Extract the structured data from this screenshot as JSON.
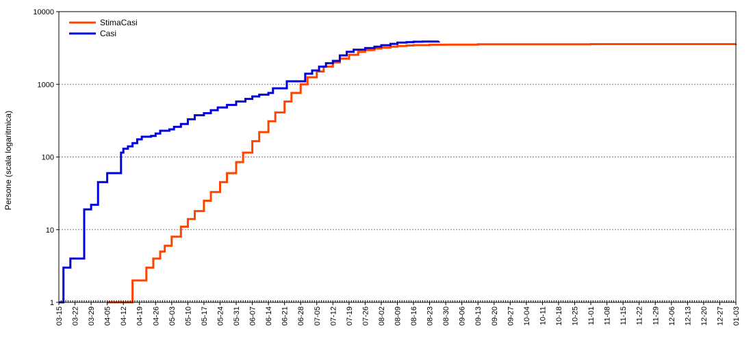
{
  "chart_data": {
    "type": "line",
    "title": "",
    "xlabel": "",
    "ylabel": "Persone (scala logaritmica)",
    "y_scale": "log",
    "ylim": [
      1,
      10000
    ],
    "y_ticks": [
      "1",
      "10",
      "100",
      "1000",
      "10000"
    ],
    "grid": "horizontal dotted",
    "legend_position": "top-left",
    "x_start": "03-15",
    "x_end": "01-03",
    "x_tick_labels": [
      "03-15",
      "03-22",
      "03-29",
      "04-05",
      "04-12",
      "04-19",
      "04-26",
      "05-03",
      "05-10",
      "05-17",
      "05-24",
      "05-31",
      "06-07",
      "06-14",
      "06-21",
      "06-28",
      "07-05",
      "07-12",
      "07-19",
      "07-26",
      "08-02",
      "08-09",
      "08-16",
      "08-23",
      "08-30",
      "09-06",
      "09-13",
      "09-20",
      "09-27",
      "10-04",
      "10-11",
      "10-18",
      "10-25",
      "11-01",
      "11-08",
      "11-15",
      "11-22",
      "11-29",
      "12-06",
      "12-13",
      "12-20",
      "12-27",
      "01-03"
    ],
    "series": [
      {
        "name": "StimaCasi",
        "color": "#ff4400",
        "points": [
          [
            "04-05",
            1
          ],
          [
            "04-15",
            1
          ],
          [
            "04-16",
            2
          ],
          [
            "04-21",
            2
          ],
          [
            "04-22",
            3
          ],
          [
            "04-24",
            3
          ],
          [
            "04-25",
            4
          ],
          [
            "04-27",
            4
          ],
          [
            "04-28",
            5
          ],
          [
            "04-30",
            6
          ],
          [
            "05-03",
            8
          ],
          [
            "05-07",
            11
          ],
          [
            "05-10",
            14
          ],
          [
            "05-13",
            18
          ],
          [
            "05-17",
            25
          ],
          [
            "05-20",
            33
          ],
          [
            "05-24",
            45
          ],
          [
            "05-27",
            60
          ],
          [
            "05-31",
            85
          ],
          [
            "06-03",
            115
          ],
          [
            "06-07",
            165
          ],
          [
            "06-10",
            220
          ],
          [
            "06-14",
            310
          ],
          [
            "06-17",
            410
          ],
          [
            "06-21",
            580
          ],
          [
            "06-24",
            760
          ],
          [
            "06-28",
            1000
          ],
          [
            "07-01",
            1250
          ],
          [
            "07-05",
            1500
          ],
          [
            "07-08",
            1750
          ],
          [
            "07-12",
            2000
          ],
          [
            "07-15",
            2250
          ],
          [
            "07-19",
            2550
          ],
          [
            "07-23",
            2800
          ],
          [
            "07-26",
            2950
          ],
          [
            "07-30",
            3100
          ],
          [
            "08-02",
            3200
          ],
          [
            "08-06",
            3300
          ],
          [
            "08-09",
            3370
          ],
          [
            "08-13",
            3420
          ],
          [
            "08-16",
            3460
          ],
          [
            "08-23",
            3500
          ],
          [
            "08-30",
            3520
          ],
          [
            "09-13",
            3550
          ],
          [
            "10-04",
            3560
          ],
          [
            "11-01",
            3570
          ],
          [
            "12-06",
            3575
          ],
          [
            "01-03",
            3580
          ]
        ]
      },
      {
        "name": "Casi",
        "color": "#0000dd",
        "points": [
          [
            "03-15",
            1
          ],
          [
            "03-16",
            1
          ],
          [
            "03-17",
            3
          ],
          [
            "03-19",
            3
          ],
          [
            "03-20",
            4
          ],
          [
            "03-25",
            4
          ],
          [
            "03-26",
            19
          ],
          [
            "03-28",
            19
          ],
          [
            "03-29",
            22
          ],
          [
            "03-31",
            22
          ],
          [
            "04-01",
            45
          ],
          [
            "04-04",
            45
          ],
          [
            "04-05",
            60
          ],
          [
            "04-10",
            60
          ],
          [
            "04-11",
            115
          ],
          [
            "04-12",
            130
          ],
          [
            "04-14",
            140
          ],
          [
            "04-16",
            155
          ],
          [
            "04-18",
            175
          ],
          [
            "04-20",
            190
          ],
          [
            "04-24",
            195
          ],
          [
            "04-26",
            210
          ],
          [
            "04-28",
            230
          ],
          [
            "05-02",
            240
          ],
          [
            "05-04",
            260
          ],
          [
            "05-07",
            285
          ],
          [
            "05-10",
            330
          ],
          [
            "05-13",
            375
          ],
          [
            "05-17",
            400
          ],
          [
            "05-20",
            440
          ],
          [
            "05-23",
            480
          ],
          [
            "05-27",
            520
          ],
          [
            "05-31",
            580
          ],
          [
            "06-04",
            630
          ],
          [
            "06-07",
            680
          ],
          [
            "06-10",
            720
          ],
          [
            "06-14",
            760
          ],
          [
            "06-16",
            880
          ],
          [
            "06-21",
            880
          ],
          [
            "06-22",
            1100
          ],
          [
            "06-29",
            1100
          ],
          [
            "06-30",
            1400
          ],
          [
            "07-03",
            1550
          ],
          [
            "07-06",
            1750
          ],
          [
            "07-09",
            1950
          ],
          [
            "07-12",
            2100
          ],
          [
            "07-15",
            2500
          ],
          [
            "07-18",
            2800
          ],
          [
            "07-21",
            3000
          ],
          [
            "07-26",
            3150
          ],
          [
            "07-30",
            3300
          ],
          [
            "08-02",
            3450
          ],
          [
            "08-06",
            3600
          ],
          [
            "08-09",
            3750
          ],
          [
            "08-13",
            3800
          ],
          [
            "08-16",
            3850
          ],
          [
            "08-20",
            3880
          ],
          [
            "08-27",
            3900
          ]
        ]
      }
    ]
  }
}
